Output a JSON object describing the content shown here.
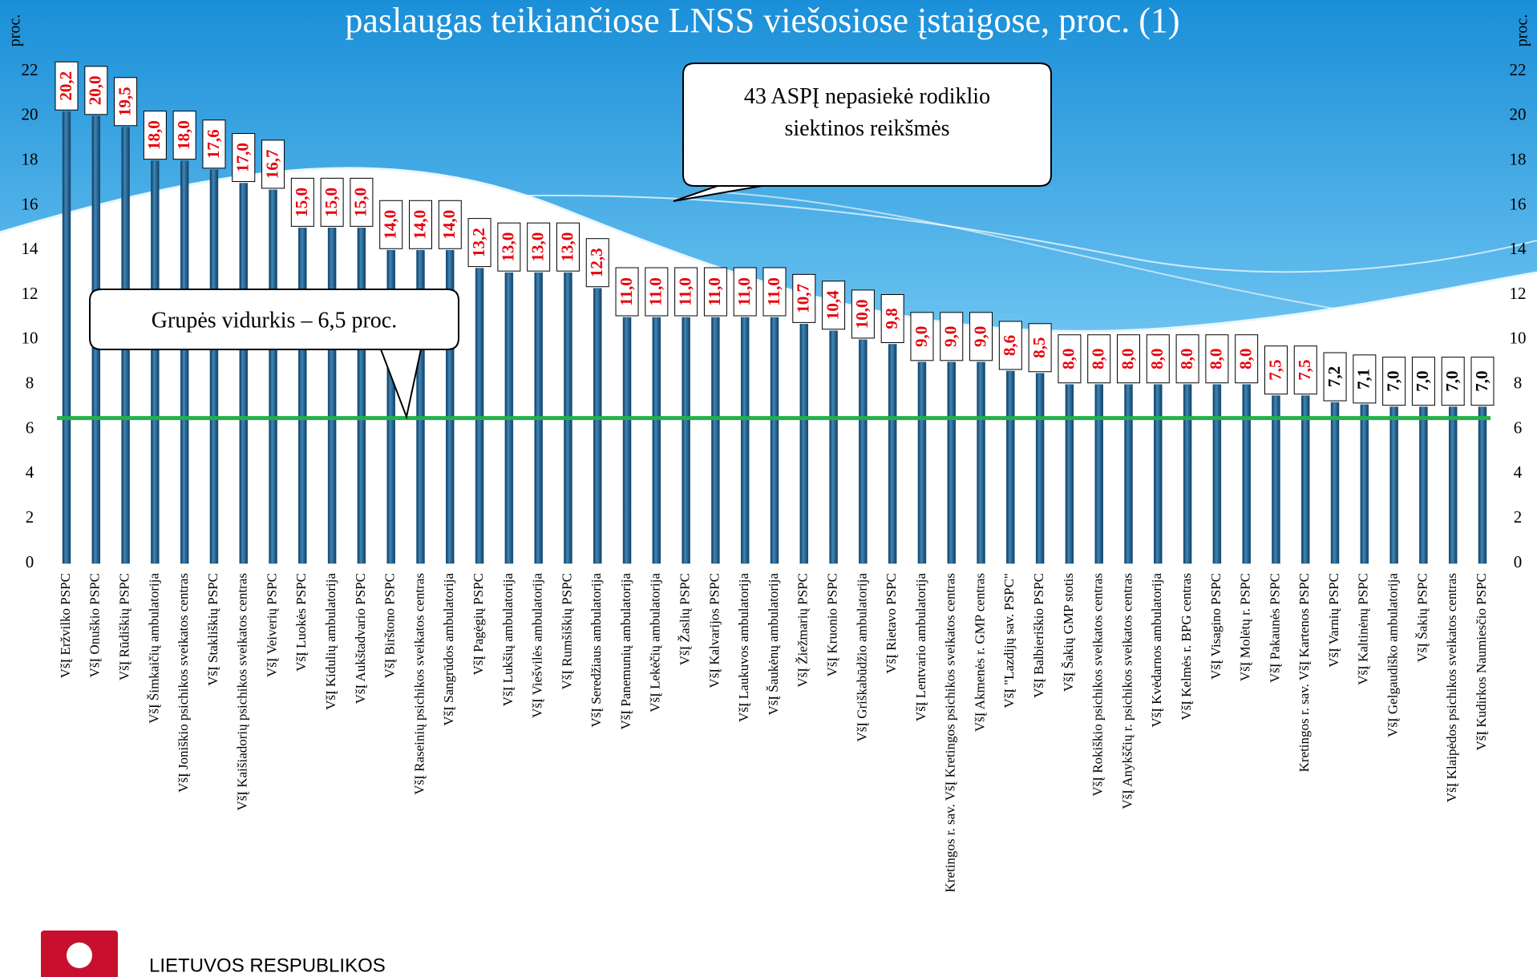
{
  "chart_data": {
    "type": "bar",
    "title": "paslaugas teikiančiose LNSS viešosiose įstaigose, proc. (1)",
    "y_label": "proc.",
    "y2_label": "proc.",
    "categories": [
      "VšĮ Eržvilko PSPC",
      "VšĮ Onuškio PSPC",
      "VšĮ Rūdiškių PSPC",
      "VšĮ Šimkaičių ambulatorija",
      "VšĮ Joniškio psichikos sveikatos centras",
      "VšĮ Stakliškių PSPC",
      "VšĮ Kaišiadorių psichikos sveikatos centras",
      "VšĮ Veiverių PSPC",
      "VšĮ Luokės PSPC",
      "VšĮ Kidulių ambulatorija",
      "VšĮ Aukštadvario PSPC",
      "VšĮ Birštono PSPC",
      "VšĮ Raseinių psichikos sveikatos centras",
      "VšĮ Sangrūdos ambulatorija",
      "VšĮ Pagėgių PSPC",
      "VšĮ Lukšių ambulatorija",
      "VšĮ Viešvilės ambulatorija",
      "VšĮ Rumšiškių PSPC",
      "VšĮ Seredžiaus ambulatorija",
      "VšĮ Panemunių ambulatorija",
      "VšĮ Lekėčių ambulatorija",
      "VšĮ Žaslių PSPC",
      "VšĮ Kalvarijos PSPC",
      "VšĮ Laukuvos ambulatorija",
      "VšĮ Šaukėnų ambulatorija",
      "VšĮ Žiežmarių PSPC",
      "VšĮ Kruonio PSPC",
      "VšĮ Griškabūdžio ambulatorija",
      "VšĮ Rietavo PSPC",
      "VšĮ Lentvario ambulatorija",
      "Kretingos r. sav. VšĮ Kretingos psichikos sveikatos centras",
      "VšĮ Akmenės r. GMP centras",
      "VšĮ \"Lazdijų sav. PSPC\"",
      "VšĮ Balbieriškio PSPC",
      "VšĮ Šakių GMP stotis",
      "VšĮ Rokiškio psichikos sveikatos centras",
      "VšĮ Anykščių r. psichikos sveikatos centras",
      "VšĮ Kvėdarnos ambulatorija",
      "VšĮ Kelmės r. BPG centras",
      "VšĮ Visagino PSPC",
      "VšĮ Molėtų r. PSPC",
      "VšĮ Pakaunės PSPC",
      "Kretingos r. sav. VšĮ Kartenos PSPC",
      "VšĮ Varnių PSPC",
      "VšĮ Kaltinėnų PSPC",
      "VšĮ Gelgaudiško ambulatorija",
      "VšĮ Šakių PSPC",
      "VšĮ Klaipėdos psichikos sveikatos centras",
      "VšĮ Kudirkos Naumiesčio PSPC"
    ],
    "values": [
      20.2,
      20.0,
      19.5,
      18.0,
      18.0,
      17.6,
      17.0,
      16.7,
      15.0,
      15.0,
      15.0,
      14.0,
      14.0,
      14.0,
      13.2,
      13.0,
      13.0,
      13.0,
      12.3,
      11.0,
      11.0,
      11.0,
      11.0,
      11.0,
      11.0,
      10.7,
      10.4,
      10.0,
      9.8,
      9.0,
      9.0,
      9.0,
      8.6,
      8.5,
      8.0,
      8.0,
      8.0,
      8.0,
      8.0,
      8.0,
      8.0,
      7.5,
      7.5,
      7.2,
      7.1,
      7.0,
      7.0,
      7.0,
      7.0
    ],
    "value_labels": [
      "20,2",
      "20,0",
      "19,5",
      "18,0",
      "18,0",
      "17,6",
      "17,0",
      "16,7",
      "15,0",
      "15,0",
      "15,0",
      "14,0",
      "14,0",
      "14,0",
      "13,2",
      "13,0",
      "13,0",
      "13,0",
      "12,3",
      "11,0",
      "11,0",
      "11,0",
      "11,0",
      "11,0",
      "11,0",
      "10,7",
      "10,4",
      "10,0",
      "9,8",
      "9,0",
      "9,0",
      "9,0",
      "8,6",
      "8,5",
      "8,0",
      "8,0",
      "8,0",
      "8,0",
      "8,0",
      "8,0",
      "8,0",
      "7,5",
      "7,5",
      "7,2",
      "7,1",
      "7,0",
      "7,0",
      "7,0",
      "7,0"
    ],
    "value_label_colors": [
      "#e8000b",
      "#e8000b",
      "#e8000b",
      "#e8000b",
      "#e8000b",
      "#e8000b",
      "#e8000b",
      "#e8000b",
      "#e8000b",
      "#e8000b",
      "#e8000b",
      "#e8000b",
      "#e8000b",
      "#e8000b",
      "#e8000b",
      "#e8000b",
      "#e8000b",
      "#e8000b",
      "#e8000b",
      "#e8000b",
      "#e8000b",
      "#e8000b",
      "#e8000b",
      "#e8000b",
      "#e8000b",
      "#e8000b",
      "#e8000b",
      "#e8000b",
      "#e8000b",
      "#e8000b",
      "#e8000b",
      "#e8000b",
      "#e8000b",
      "#e8000b",
      "#e8000b",
      "#e8000b",
      "#e8000b",
      "#e8000b",
      "#e8000b",
      "#e8000b",
      "#e8000b",
      "#e8000b",
      "#e8000b",
      "#000000",
      "#000000",
      "#000000",
      "#000000",
      "#000000",
      "#000000"
    ],
    "color": "#1e5b86",
    "ylim": [
      0,
      22
    ],
    "yticks": [
      0,
      2,
      4,
      6,
      8,
      10,
      12,
      14,
      16,
      18,
      20,
      22
    ],
    "y2lim": [
      0,
      22
    ],
    "y2ticks": [
      0,
      2,
      4,
      6,
      8,
      10,
      12,
      14,
      16,
      18,
      20,
      22
    ],
    "average_line": {
      "value": 6.5,
      "color": "#22b04a"
    },
    "annotations": [
      "Grupės vidurkis – 6,5 proc.",
      "43 ASPĮ nepasiekė rodiklio siektinos reikšmės"
    ]
  },
  "footer": {
    "text": "LIETUVOS RESPUBLIKOS"
  }
}
